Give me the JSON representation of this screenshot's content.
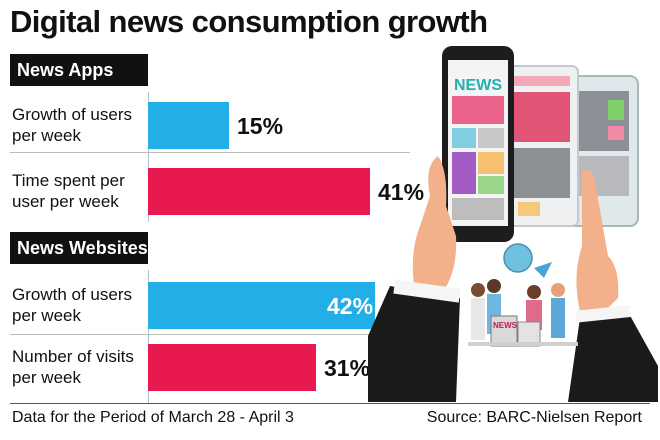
{
  "title": "Digital news consumption growth",
  "chart_data": {
    "type": "bar",
    "orientation": "horizontal",
    "title": "Digital news consumption growth",
    "groups": [
      {
        "name": "News Apps",
        "items": [
          {
            "label": "Growth of users per week",
            "value": 15,
            "value_label": "15%",
            "color": "#22aee6"
          },
          {
            "label": "Time spent per user per week",
            "value": 41,
            "value_label": "41%",
            "color": "#e8194f"
          }
        ]
      },
      {
        "name": "News Websites",
        "items": [
          {
            "label": "Growth of users per week",
            "value": 42,
            "value_label": "42%",
            "color": "#22aee6"
          },
          {
            "label": "Number of visits per week",
            "value": 31,
            "value_label": "31%",
            "color": "#e8194f"
          }
        ]
      }
    ],
    "xlim": [
      0,
      42
    ]
  },
  "footer": {
    "note": "Data for the Period of March 28 - April 3",
    "source": "Source: BARC-Nielsen Report"
  },
  "illustration": {
    "phone_screen_text": "NEWS",
    "sign_text": "NEWS"
  },
  "colors": {
    "blue": "#22aee6",
    "red": "#e8194f"
  }
}
